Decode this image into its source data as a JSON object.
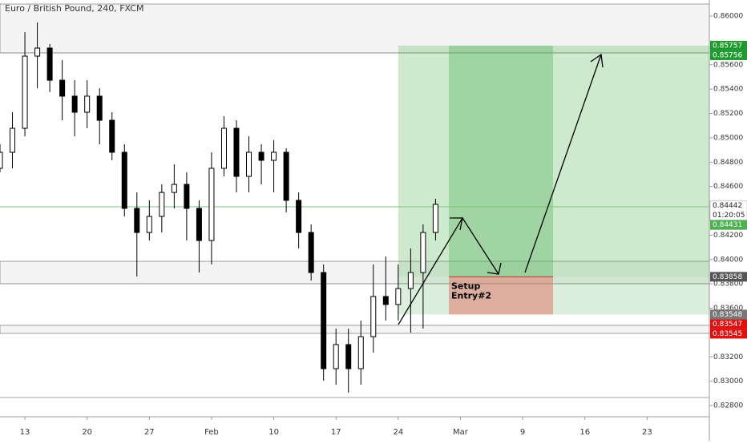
{
  "chart_data": {
    "type": "candlestick",
    "title": "Euro / British Pound, 240, FXCM",
    "x": [
      -2,
      -1,
      0,
      1,
      2,
      3,
      4,
      5,
      6,
      7,
      8,
      9,
      10,
      11,
      12,
      13,
      14,
      15,
      16,
      17,
      18,
      19,
      20,
      21,
      22,
      23,
      24,
      25,
      26,
      27,
      28,
      29,
      30,
      31,
      32,
      33
    ],
    "open": [
      0.84749,
      0.84881,
      0.85078,
      0.85671,
      0.85737,
      0.85473,
      0.85342,
      0.8521,
      0.85342,
      0.85144,
      0.84881,
      0.8442,
      0.84222,
      0.84354,
      0.84551,
      0.84617,
      0.8442,
      0.84156,
      0.84749,
      0.85078,
      0.84683,
      0.84881,
      0.84815,
      0.84881,
      0.84486,
      0.84222,
      0.83893,
      0.83103,
      0.83301,
      0.83103,
      0.83366,
      0.83696,
      0.8363,
      0.83761,
      0.83893,
      0.84222
    ],
    "high": [
      0.84947,
      0.8521,
      0.85868,
      0.85947,
      0.8577,
      0.85638,
      0.85473,
      0.85473,
      0.85407,
      0.8521,
      0.84947,
      0.84551,
      0.84486,
      0.84617,
      0.84782,
      0.84716,
      0.84486,
      0.84881,
      0.85177,
      0.85144,
      0.85012,
      0.84947,
      0.84979,
      0.84914,
      0.84551,
      0.84288,
      0.83959,
      0.83432,
      0.83432,
      0.83498,
      0.83959,
      0.84025,
      0.83959,
      0.84091,
      0.84288,
      0.84499
    ],
    "low": [
      0.84716,
      0.84749,
      0.85012,
      0.85407,
      0.85375,
      0.85144,
      0.85012,
      0.85078,
      0.84947,
      0.84815,
      0.84354,
      0.8386,
      0.84156,
      0.84222,
      0.8442,
      0.84156,
      0.83893,
      0.83959,
      0.84683,
      0.84551,
      0.84551,
      0.84617,
      0.84551,
      0.84387,
      0.84091,
      0.83827,
      0.83004,
      0.82971,
      0.82906,
      0.82971,
      0.83235,
      0.83498,
      0.83498,
      0.83399,
      0.83432,
      0.84156
    ],
    "close": [
      0.84881,
      0.85078,
      0.85671,
      0.85737,
      0.85473,
      0.85342,
      0.8521,
      0.85342,
      0.85144,
      0.84881,
      0.8442,
      0.84222,
      0.84354,
      0.84551,
      0.84617,
      0.8442,
      0.84156,
      0.84749,
      0.85078,
      0.84683,
      0.84881,
      0.84815,
      0.84881,
      0.84486,
      0.84222,
      0.83893,
      0.83103,
      0.83301,
      0.83103,
      0.83366,
      0.83696,
      0.8363,
      0.83761,
      0.83893,
      0.84222,
      0.84453
    ],
    "xlim": [
      -2,
      55
    ],
    "xticks": [
      {
        "value": 0,
        "label": "13"
      },
      {
        "value": 5,
        "label": "20"
      },
      {
        "value": 10,
        "label": "27"
      },
      {
        "value": 15,
        "label": "Feb"
      },
      {
        "value": 20,
        "label": "10"
      },
      {
        "value": 25,
        "label": "17"
      },
      {
        "value": 30,
        "label": "24"
      },
      {
        "value": 35,
        "label": "Mar"
      },
      {
        "value": 40,
        "label": "9"
      },
      {
        "value": 45,
        "label": "16"
      },
      {
        "value": 50,
        "label": "23"
      }
    ],
    "ylim": [
      0.82708,
      0.86132
    ],
    "yticks": [
      {
        "value": 0.828,
        "label": "0.82800"
      },
      {
        "value": 0.83,
        "label": "0.83000"
      },
      {
        "value": 0.832,
        "label": "0.83200"
      },
      {
        "value": 0.834,
        "label": "0.83400"
      },
      {
        "value": 0.836,
        "label": "0.83600"
      },
      {
        "value": 0.838,
        "label": "0.83800"
      },
      {
        "value": 0.84,
        "label": "0.84000"
      },
      {
        "value": 0.842,
        "label": "0.84200"
      },
      {
        "value": 0.846,
        "label": "0.84600"
      },
      {
        "value": 0.848,
        "label": "0.84800"
      },
      {
        "value": 0.85,
        "label": "0.85000"
      },
      {
        "value": 0.852,
        "label": "0.85200"
      },
      {
        "value": 0.854,
        "label": "0.85400"
      },
      {
        "value": 0.856,
        "label": "0.85600"
      },
      {
        "value": 0.86,
        "label": "0.86000"
      }
    ],
    "zones": [
      {
        "top": 0.86099,
        "bottom": 0.85697
      },
      {
        "top": 0.83985,
        "bottom": 0.83801
      },
      {
        "top": 0.83459,
        "bottom": 0.83393
      }
    ],
    "levels": [
      0.85697,
      0.83801,
      0.82866
    ],
    "current_line": 0.84433,
    "position": {
      "entry": 0.83858,
      "stop": 0.83548,
      "target": 0.85757,
      "label": [
        "Setup",
        "Entry#2"
      ]
    },
    "price_labels": [
      {
        "value": 0.85757,
        "label": "0.85757",
        "color": "#1e9a2e"
      },
      {
        "value": 0.85756,
        "label": "0.85756",
        "color": "#1e9a2e"
      },
      {
        "value": 0.84442,
        "label": "0.84442",
        "countdown": "01:20:05",
        "color": "#ffffff"
      },
      {
        "value": 0.84431,
        "label": "0.84431",
        "color": "#4caf50"
      },
      {
        "value": 0.83858,
        "label": "0.83858",
        "color": "#555555"
      },
      {
        "value": 0.83548,
        "label": "0.83548",
        "color": "#777777"
      },
      {
        "value": 0.83547,
        "label": "0.83547",
        "color": "#e01010"
      },
      {
        "value": 0.83545,
        "label": "0.83545",
        "color": "#e01010"
      }
    ]
  }
}
